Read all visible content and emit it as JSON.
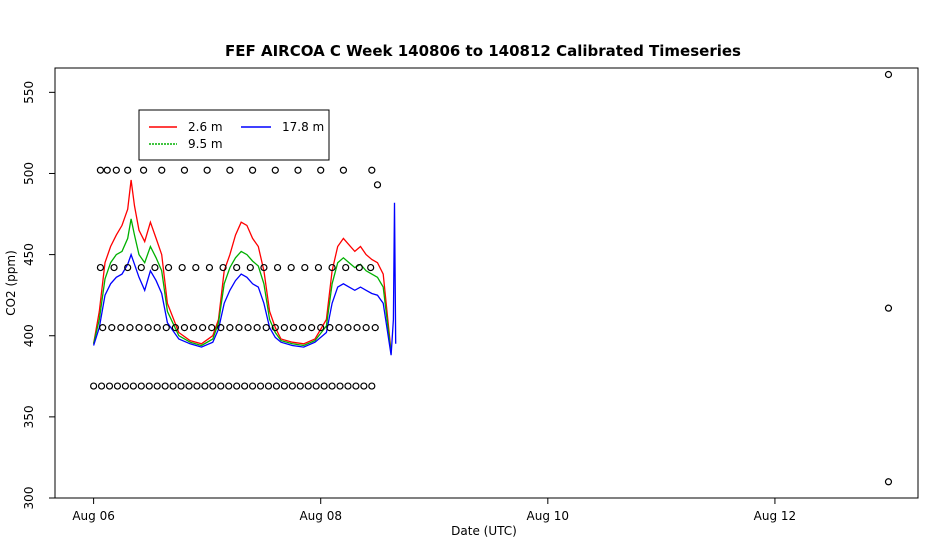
{
  "chart_data": {
    "type": "line",
    "title": "FEF AIRCOA C  Week 140806 to 140812  Calibrated Timeseries",
    "xlabel": "Date (UTC)",
    "ylabel": "CO2 (ppm)",
    "x_unit": "days since Aug 06 00:00 UTC",
    "xlim": [
      -0.34,
      7.26
    ],
    "ylim": [
      300,
      565
    ],
    "x_ticks": [
      {
        "value": 0,
        "label": "Aug 06"
      },
      {
        "value": 2,
        "label": "Aug 08"
      },
      {
        "value": 4,
        "label": "Aug 10"
      },
      {
        "value": 6,
        "label": "Aug 12"
      }
    ],
    "y_ticks": [
      300,
      350,
      400,
      450,
      500,
      550
    ],
    "legend": {
      "position": "top-left",
      "entries": [
        {
          "name": "2.6 m",
          "color": "#ff0000"
        },
        {
          "name": "9.5 m",
          "color": "#00b000"
        },
        {
          "name": "17.8 m",
          "color": "#0000ff"
        }
      ]
    },
    "series": [
      {
        "name": "2.6 m",
        "color": "#ff0000",
        "style": "line",
        "x": [
          0.0,
          0.05,
          0.1,
          0.15,
          0.2,
          0.25,
          0.3,
          0.33,
          0.36,
          0.4,
          0.45,
          0.5,
          0.55,
          0.6,
          0.65,
          0.75,
          0.85,
          0.95,
          1.05,
          1.1,
          1.15,
          1.2,
          1.25,
          1.3,
          1.35,
          1.4,
          1.45,
          1.5,
          1.55,
          1.6,
          1.65,
          1.75,
          1.85,
          1.95,
          2.05,
          2.1,
          2.15,
          2.2,
          2.25,
          2.3,
          2.35,
          2.4,
          2.45,
          2.5,
          2.55,
          2.62
        ],
        "y": [
          395,
          415,
          445,
          455,
          462,
          468,
          478,
          496,
          480,
          465,
          458,
          470,
          460,
          450,
          420,
          402,
          397,
          395,
          400,
          410,
          440,
          450,
          462,
          470,
          468,
          460,
          455,
          440,
          415,
          405,
          398,
          396,
          395,
          398,
          410,
          440,
          455,
          460,
          456,
          452,
          455,
          450,
          447,
          445,
          438,
          390
        ]
      },
      {
        "name": "9.5 m",
        "color": "#00b000",
        "style": "line",
        "x": [
          0.0,
          0.05,
          0.1,
          0.15,
          0.2,
          0.25,
          0.3,
          0.33,
          0.36,
          0.4,
          0.45,
          0.5,
          0.55,
          0.6,
          0.65,
          0.75,
          0.85,
          0.95,
          1.05,
          1.1,
          1.15,
          1.2,
          1.25,
          1.3,
          1.35,
          1.4,
          1.45,
          1.5,
          1.55,
          1.6,
          1.65,
          1.75,
          1.85,
          1.95,
          2.05,
          2.1,
          2.15,
          2.2,
          2.25,
          2.3,
          2.35,
          2.4,
          2.45,
          2.5,
          2.55,
          2.62
        ],
        "y": [
          395,
          410,
          435,
          445,
          450,
          452,
          460,
          472,
          462,
          450,
          445,
          455,
          448,
          440,
          415,
          400,
          396,
          394,
          398,
          408,
          432,
          442,
          448,
          452,
          450,
          446,
          443,
          432,
          410,
          402,
          397,
          395,
          394,
          397,
          406,
          432,
          445,
          448,
          445,
          442,
          444,
          440,
          438,
          436,
          430,
          389
        ]
      },
      {
        "name": "17.8 m",
        "color": "#0000ff",
        "style": "line",
        "x": [
          0.0,
          0.05,
          0.1,
          0.15,
          0.2,
          0.25,
          0.3,
          0.33,
          0.36,
          0.4,
          0.45,
          0.5,
          0.55,
          0.6,
          0.65,
          0.75,
          0.85,
          0.95,
          1.05,
          1.1,
          1.15,
          1.2,
          1.25,
          1.3,
          1.35,
          1.4,
          1.45,
          1.5,
          1.55,
          1.6,
          1.65,
          1.75,
          1.85,
          1.95,
          2.05,
          2.1,
          2.15,
          2.2,
          2.25,
          2.3,
          2.35,
          2.4,
          2.45,
          2.5,
          2.55,
          2.62,
          2.64,
          2.65,
          2.66
        ],
        "y": [
          394,
          405,
          425,
          432,
          436,
          438,
          444,
          450,
          444,
          436,
          428,
          440,
          434,
          426,
          408,
          398,
          395,
          393,
          396,
          404,
          420,
          428,
          434,
          438,
          436,
          432,
          430,
          420,
          405,
          399,
          396,
          394,
          393,
          396,
          402,
          420,
          430,
          432,
          430,
          428,
          430,
          428,
          426,
          425,
          420,
          388,
          410,
          482,
          395
        ]
      },
      {
        "name": "flags",
        "color": "#000000",
        "style": "points",
        "x": [
          0.0,
          0.07,
          0.14,
          0.21,
          0.28,
          0.35,
          0.42,
          0.49,
          0.56,
          0.63,
          0.7,
          0.77,
          0.84,
          0.91,
          0.98,
          1.05,
          1.12,
          1.19,
          1.26,
          1.33,
          1.4,
          1.47,
          1.54,
          1.61,
          1.68,
          1.75,
          1.82,
          1.89,
          1.96,
          2.03,
          2.1,
          2.17,
          2.24,
          2.31,
          2.38,
          2.45,
          0.08,
          0.16,
          0.24,
          0.32,
          0.4,
          0.48,
          0.56,
          0.64,
          0.72,
          0.8,
          0.88,
          0.96,
          1.04,
          1.12,
          1.2,
          1.28,
          1.36,
          1.44,
          1.52,
          1.6,
          1.68,
          1.76,
          1.84,
          1.92,
          2.0,
          2.08,
          2.16,
          2.24,
          2.32,
          2.4,
          2.48,
          0.06,
          0.18,
          0.3,
          0.42,
          0.54,
          0.66,
          0.78,
          0.9,
          1.02,
          1.14,
          1.26,
          1.38,
          1.5,
          1.62,
          1.74,
          1.86,
          1.98,
          2.1,
          2.22,
          2.34,
          2.44,
          0.06,
          0.12,
          0.2,
          0.3,
          0.44,
          0.6,
          0.8,
          1.0,
          1.2,
          1.4,
          1.6,
          1.8,
          2.0,
          2.2,
          2.45,
          2.5,
          7.0,
          7.0,
          7.0
        ],
        "y": [
          369,
          369,
          369,
          369,
          369,
          369,
          369,
          369,
          369,
          369,
          369,
          369,
          369,
          369,
          369,
          369,
          369,
          369,
          369,
          369,
          369,
          369,
          369,
          369,
          369,
          369,
          369,
          369,
          369,
          369,
          369,
          369,
          369,
          369,
          369,
          369,
          405,
          405,
          405,
          405,
          405,
          405,
          405,
          405,
          405,
          405,
          405,
          405,
          405,
          405,
          405,
          405,
          405,
          405,
          405,
          405,
          405,
          405,
          405,
          405,
          405,
          405,
          405,
          405,
          405,
          405,
          405,
          442,
          442,
          442,
          442,
          442,
          442,
          442,
          442,
          442,
          442,
          442,
          442,
          442,
          442,
          442,
          442,
          442,
          442,
          442,
          442,
          442,
          502,
          502,
          502,
          502,
          502,
          502,
          502,
          502,
          502,
          502,
          502,
          502,
          502,
          502,
          502,
          493,
          561,
          417,
          310
        ]
      }
    ]
  }
}
